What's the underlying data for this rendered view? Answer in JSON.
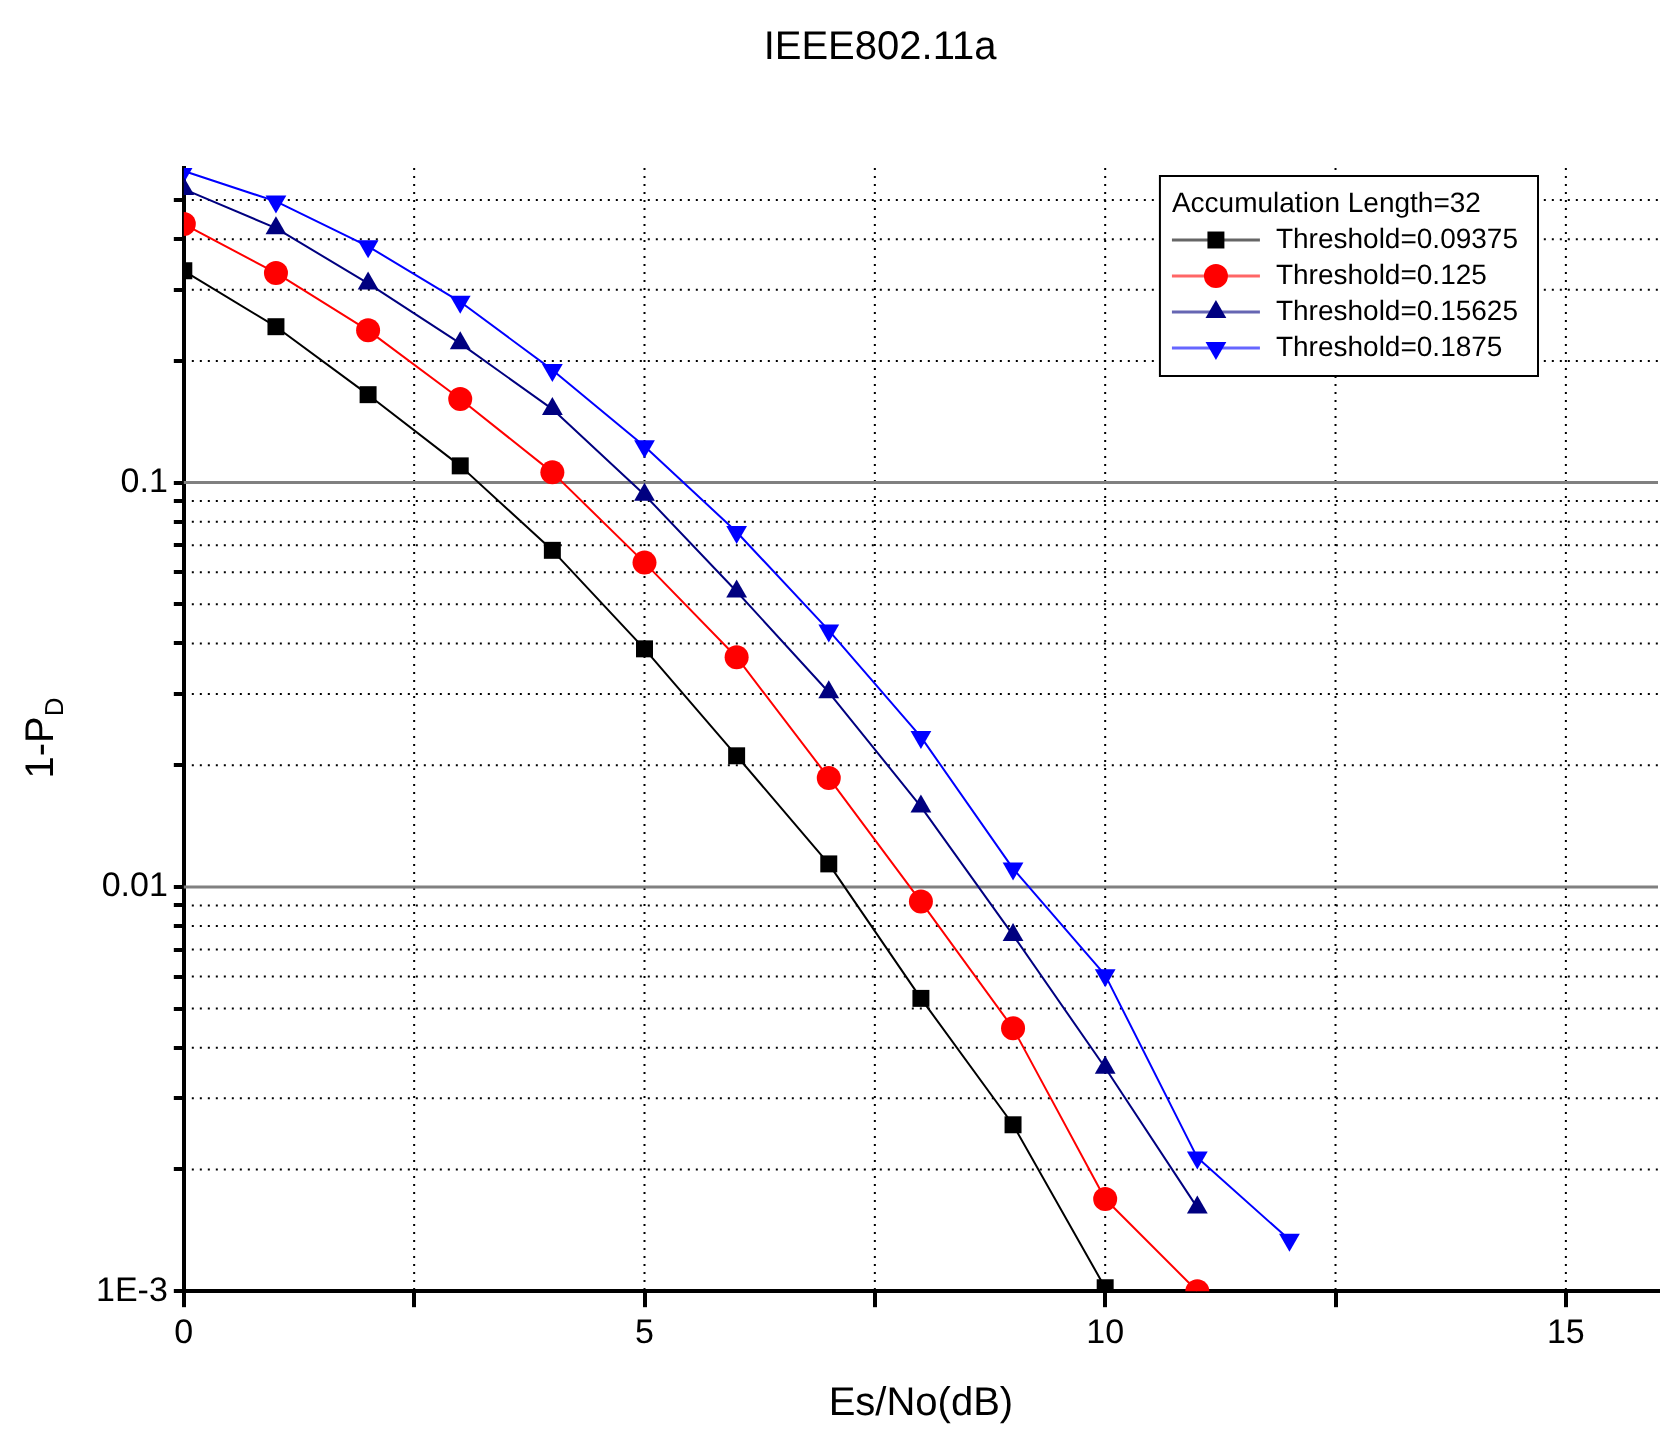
{
  "chart_data": {
    "type": "line",
    "title": "IEEE802.11a",
    "xlabel": "Es/No(dB)",
    "ylabel": "1-P$_{D}$",
    "legend_title": "Accumulation Length=32",
    "legend": "top right",
    "grid": true,
    "log": "y",
    "line_style": "solid",
    "x": [
      0,
      1,
      2,
      3,
      4,
      5,
      6,
      7,
      8,
      9,
      10,
      11,
      12
    ],
    "xlim": [
      0,
      16
    ],
    "xticks": [
      0,
      {
        "value": 2.5,
        "label": null
      },
      5,
      {
        "value": 7.5,
        "label": null
      },
      10,
      {
        "value": 12.5,
        "label": null
      },
      15
    ],
    "ylim": [
      0.001,
      0.6
    ],
    "yticks": [
      {
        "value": 0.001,
        "label": "1E-3"
      },
      {
        "value": 0.002,
        "label": null
      },
      {
        "value": 0.003,
        "label": null
      },
      {
        "value": 0.004,
        "label": null
      },
      {
        "value": 0.005,
        "label": null
      },
      {
        "value": 0.006,
        "label": null
      },
      {
        "value": 0.007,
        "label": null
      },
      {
        "value": 0.008,
        "label": null
      },
      {
        "value": 0.009,
        "label": null
      },
      0.01,
      {
        "value": 0.02,
        "label": null
      },
      {
        "value": 0.03,
        "label": null
      },
      {
        "value": 0.04,
        "label": null
      },
      {
        "value": 0.05,
        "label": null
      },
      {
        "value": 0.06,
        "label": null
      },
      {
        "value": 0.07,
        "label": null
      },
      {
        "value": 0.08,
        "label": null
      },
      {
        "value": 0.09,
        "label": null
      },
      0.1,
      {
        "value": 0.2,
        "label": null
      },
      {
        "value": 0.3,
        "label": null
      },
      {
        "value": 0.4,
        "label": null
      },
      {
        "value": 0.5,
        "label": null
      }
    ],
    "series": [
      {
        "name": "Threshold=0.09375",
        "color": "#000000",
        "marker": "square",
        "values": [
          0.334,
          0.243,
          0.165,
          0.11,
          0.068,
          0.0388,
          0.0211,
          0.0114,
          0.0053,
          0.00258,
          0.00102,
          null,
          null
        ]
      },
      {
        "name": "Threshold=0.125",
        "color": "#ff0000",
        "marker": "circle",
        "values": [
          0.436,
          0.33,
          0.238,
          0.161,
          0.106,
          0.0634,
          0.037,
          0.0186,
          0.0092,
          0.00447,
          0.00169,
          0.001,
          null
        ]
      },
      {
        "name": "Threshold=0.15625",
        "color": "#000080",
        "marker": "triangle",
        "values": [
          0.532,
          0.426,
          0.311,
          0.221,
          0.152,
          0.0933,
          0.0538,
          0.0303,
          0.0158,
          0.0076,
          0.00357,
          0.00161,
          null
        ]
      },
      {
        "name": "Threshold=0.1875",
        "color": "#0000ff",
        "marker": "triangle-down",
        "values": [
          0.59,
          0.496,
          0.384,
          0.28,
          0.19,
          0.123,
          0.0755,
          0.0431,
          0.0235,
          0.0111,
          0.00605,
          0.00214,
          0.00134
        ]
      }
    ]
  }
}
